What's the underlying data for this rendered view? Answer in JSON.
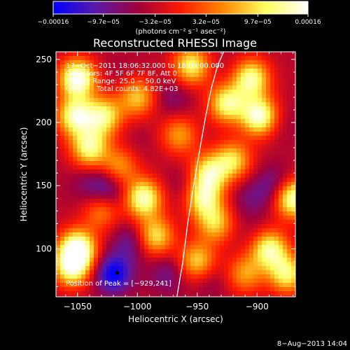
{
  "chart_data": {
    "type": "heatmap",
    "title": "Reconstructed RHESSI Image",
    "xlabel": "Heliocentric X (arcsec)",
    "ylabel": "Heliocentric Y (arcsec)",
    "xlim": [
      -1068,
      -868
    ],
    "ylim": [
      62,
      256
    ],
    "x_ticks": [
      -1050,
      -1000,
      -950,
      -900
    ],
    "x_tick_labels": [
      "−1050",
      "−1000",
      "−950",
      "−900"
    ],
    "y_ticks": [
      100,
      150,
      200,
      250
    ],
    "y_tick_labels": [
      "100",
      "150",
      "200",
      "250"
    ],
    "colorbar": {
      "range": [
        -0.00016,
        0.00016
      ],
      "ticks": [
        -0.00016,
        -9.7e-05,
        -3.2e-05,
        3.2e-05,
        9.7e-05,
        0.00016
      ],
      "tick_labels": [
        "−0.00016",
        "−9.7e−05",
        "−3.2e−05",
        "3.2e−05",
        "9.7e−05",
        "0.00016"
      ],
      "unit_label": "(photons cm⁻² s⁻¹ asec⁻²)",
      "colors": [
        "#0000ff",
        "#5a1aa8",
        "#a0003a",
        "#ff1a00",
        "#ff8800",
        "#ffff60",
        "#ffffff"
      ]
    },
    "annotations": [
      "17−Oct−2011 18:06:32.000 to 18:09:00.000",
      "Detectors: 4F 5F 6F 7F 8F, Att 0",
      "Energy Range: 25.0 − 50.0 keV",
      "Clean     Total counts: 4.82E+03",
      "Position of Peak = [−929,241]"
    ],
    "limb_curve": {
      "x": [
        -967,
        -962,
        -958,
        -953,
        -948,
        -943,
        -938,
        -933,
        -928
      ],
      "y": [
        62,
        90,
        120,
        150,
        178,
        205,
        228,
        245,
        256
      ]
    },
    "peak": {
      "x": -929,
      "y": 241
    },
    "hot_spots": [
      {
        "x": -1050,
        "y": 235,
        "v": 0.00016
      },
      {
        "x": -1052,
        "y": 205,
        "v": 0.00013
      },
      {
        "x": -1040,
        "y": 180,
        "v": 0.00012
      },
      {
        "x": -1028,
        "y": 205,
        "v": 0.00011
      },
      {
        "x": -1050,
        "y": 100,
        "v": 0.00016
      },
      {
        "x": -1055,
        "y": 85,
        "v": 0.00012
      },
      {
        "x": -995,
        "y": 140,
        "v": 0.00014
      },
      {
        "x": -985,
        "y": 110,
        "v": 0.0001
      },
      {
        "x": -1000,
        "y": 220,
        "v": 8e-05
      },
      {
        "x": -1015,
        "y": 165,
        "v": 6e-05
      },
      {
        "x": -955,
        "y": 245,
        "v": 0.00011
      },
      {
        "x": -945,
        "y": 140,
        "v": 0.00011
      },
      {
        "x": -940,
        "y": 160,
        "v": 0.00011
      },
      {
        "x": -935,
        "y": 120,
        "v": 8e-05
      },
      {
        "x": -925,
        "y": 215,
        "v": 0.00012
      },
      {
        "x": -920,
        "y": 170,
        "v": 9e-05
      },
      {
        "x": -905,
        "y": 235,
        "v": 0.00013
      },
      {
        "x": -898,
        "y": 205,
        "v": 0.00015
      },
      {
        "x": -890,
        "y": 100,
        "v": 0.00013
      },
      {
        "x": -870,
        "y": 140,
        "v": 0.00015
      },
      {
        "x": -875,
        "y": 80,
        "v": 0.00011
      },
      {
        "x": -950,
        "y": 90,
        "v": 9e-05
      },
      {
        "x": -910,
        "y": 80,
        "v": 6e-05
      },
      {
        "x": -1030,
        "y": 130,
        "v": 5e-05
      },
      {
        "x": -965,
        "y": 190,
        "v": 6e-05
      }
    ],
    "cold_spots": [
      {
        "x": -1020,
        "y": 80,
        "v": -0.00016
      },
      {
        "x": -1005,
        "y": 105,
        "v": -0.0001
      },
      {
        "x": -1020,
        "y": 145,
        "v": -8e-05
      },
      {
        "x": -1030,
        "y": 150,
        "v": -9e-05
      },
      {
        "x": -1000,
        "y": 185,
        "v": -5e-05
      },
      {
        "x": -970,
        "y": 220,
        "v": -8e-05
      },
      {
        "x": -960,
        "y": 150,
        "v": -7e-05
      },
      {
        "x": -975,
        "y": 80,
        "v": -9e-05
      },
      {
        "x": -905,
        "y": 140,
        "v": -8e-05
      },
      {
        "x": -885,
        "y": 150,
        "v": -0.0001
      },
      {
        "x": -880,
        "y": 200,
        "v": -6e-05
      },
      {
        "x": -920,
        "y": 240,
        "v": -5e-05
      },
      {
        "x": -940,
        "y": 75,
        "v": -7e-05
      },
      {
        "x": -1045,
        "y": 150,
        "v": -6e-05
      },
      {
        "x": -1015,
        "y": 240,
        "v": -5e-05
      },
      {
        "x": -900,
        "y": 110,
        "v": -6e-05
      }
    ]
  },
  "footer": {
    "timestamp": "8−Aug−2013 14:04"
  }
}
